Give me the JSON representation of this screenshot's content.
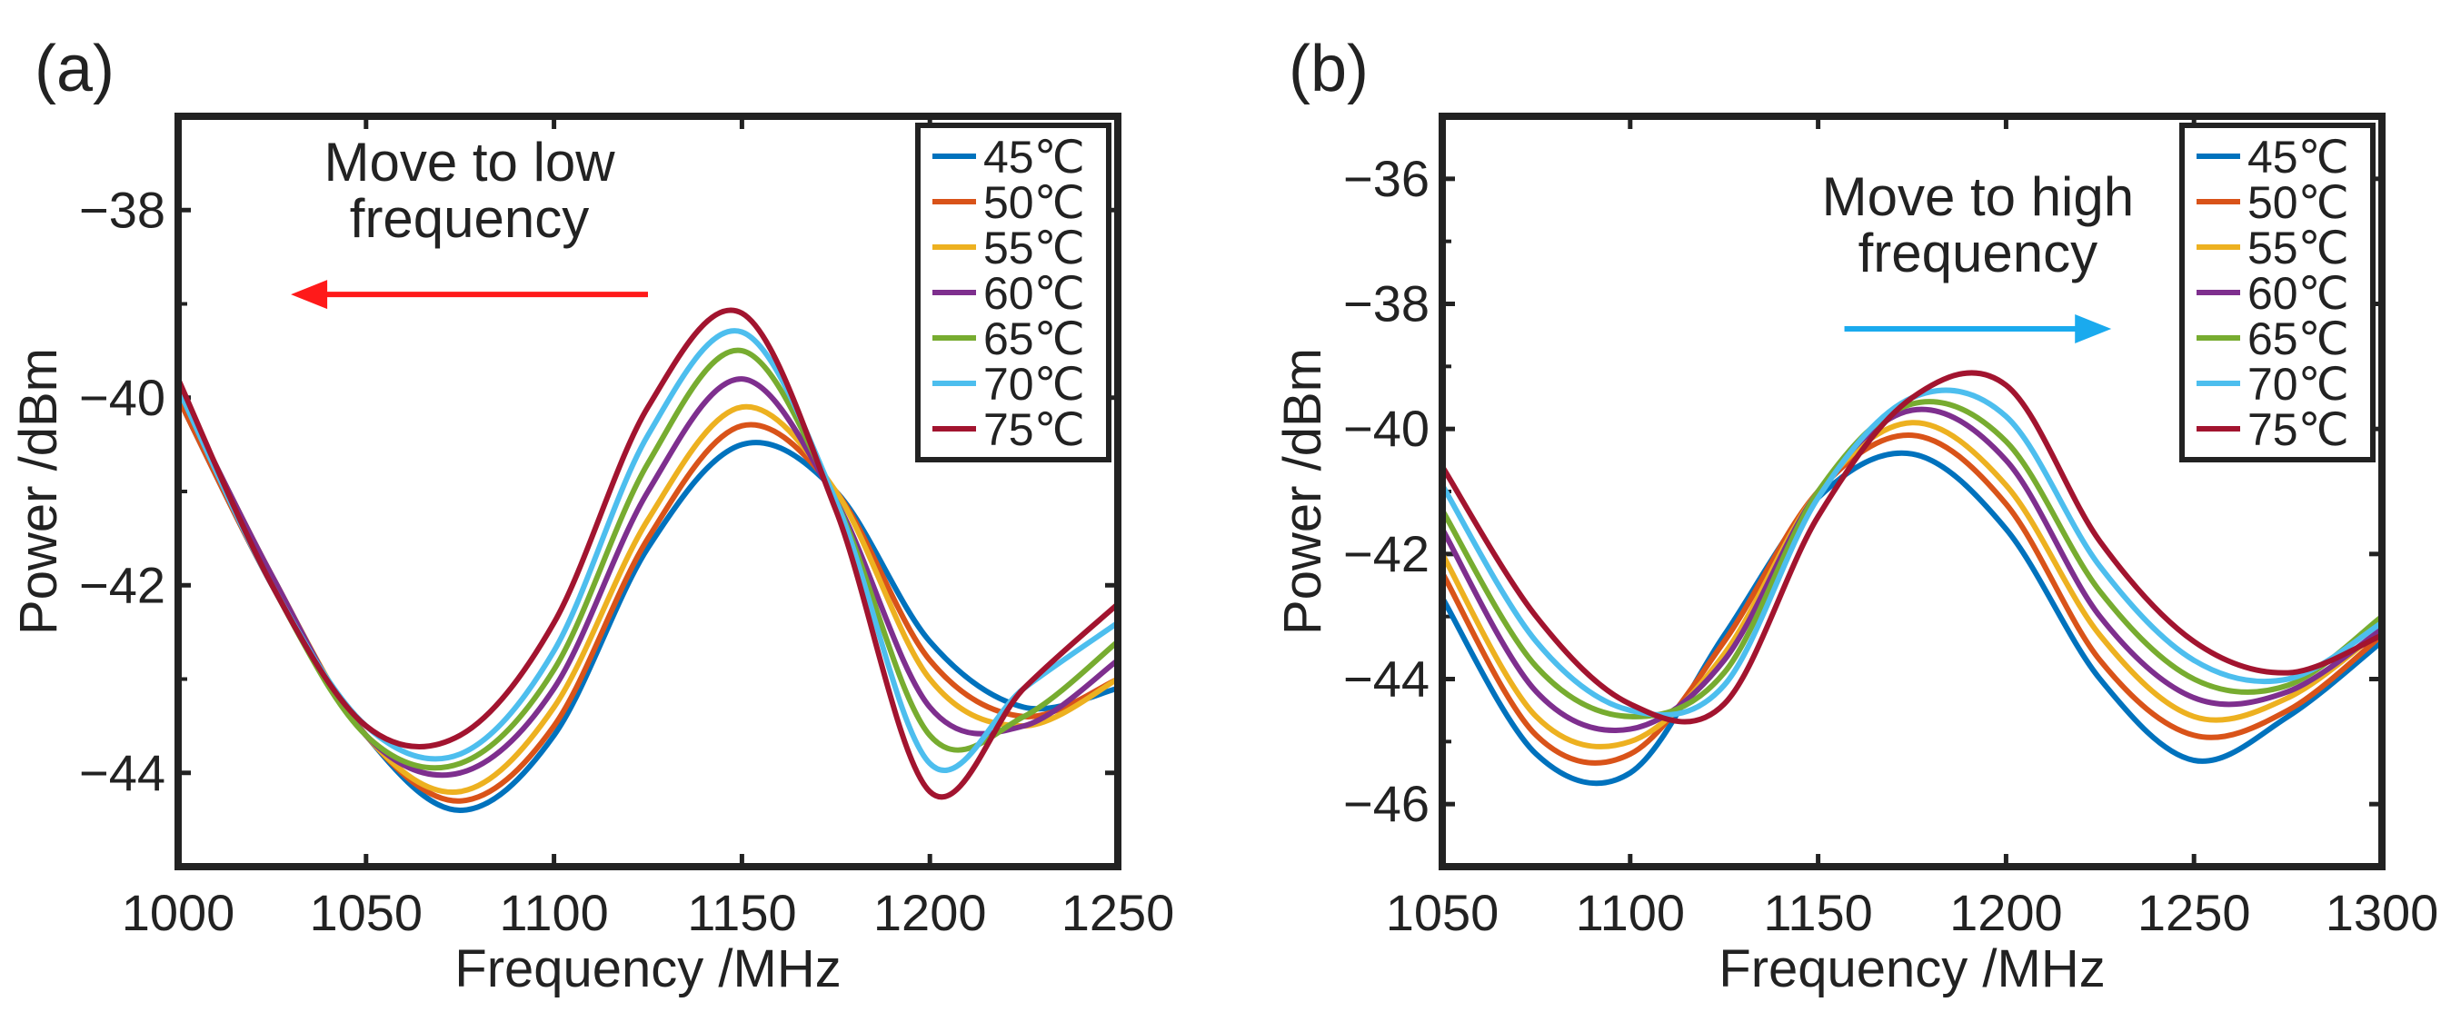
{
  "chart_data": [
    {
      "type": "line",
      "panel_label": "(a)",
      "xlabel": "Frequency /MHz",
      "ylabel": "Power /dBm",
      "xlim": [
        1000,
        1250
      ],
      "ylim": [
        -45,
        -37
      ],
      "xticks": [
        1000,
        1050,
        1100,
        1150,
        1200,
        1250
      ],
      "xtick_labels": [
        "1000",
        "1050",
        "1100",
        "1150",
        "1200",
        "1250"
      ],
      "yticks": [
        -44,
        -42,
        -40,
        -38
      ],
      "ytick_labels": [
        "−44",
        "−42",
        "−40",
        "−38"
      ],
      "legend": "top-right",
      "annotation": {
        "lines": [
          "Move to low",
          "frequency"
        ],
        "arrow": "left",
        "arrow_color": "#ff1a1a",
        "arrow_from": 1125,
        "arrow_to": 1030,
        "arrow_y": -38.9
      },
      "x": [
        1000,
        1025,
        1050,
        1075,
        1100,
        1125,
        1150,
        1175,
        1200,
        1225,
        1250
      ],
      "series": [
        {
          "name": "45℃",
          "color": "#0072bd",
          "values": [
            -40.0,
            -42.0,
            -43.6,
            -44.4,
            -43.6,
            -41.6,
            -40.5,
            -41.0,
            -42.6,
            -43.3,
            -43.1
          ]
        },
        {
          "name": "50℃",
          "color": "#d95319",
          "values": [
            -40.0,
            -42.0,
            -43.6,
            -44.3,
            -43.5,
            -41.5,
            -40.3,
            -41.0,
            -42.8,
            -43.4,
            -43.0
          ]
        },
        {
          "name": "55℃",
          "color": "#edb120",
          "values": [
            -39.9,
            -41.9,
            -43.6,
            -44.2,
            -43.3,
            -41.3,
            -40.1,
            -41.0,
            -43.0,
            -43.5,
            -43.0
          ]
        },
        {
          "name": "60℃",
          "color": "#7e2f8e",
          "values": [
            -39.9,
            -41.9,
            -43.6,
            -44.0,
            -43.1,
            -41.0,
            -39.8,
            -41.1,
            -43.3,
            -43.5,
            -42.8
          ]
        },
        {
          "name": "65℃",
          "color": "#77ac30",
          "values": [
            -39.9,
            -42.0,
            -43.6,
            -43.9,
            -42.9,
            -40.7,
            -39.5,
            -41.1,
            -43.6,
            -43.4,
            -42.6
          ]
        },
        {
          "name": "70℃",
          "color": "#4dbeee",
          "values": [
            -39.9,
            -42.0,
            -43.5,
            -43.8,
            -42.7,
            -40.4,
            -39.3,
            -41.1,
            -43.9,
            -43.1,
            -42.4
          ]
        },
        {
          "name": "75℃",
          "color": "#a2142f",
          "values": [
            -39.8,
            -42.0,
            -43.5,
            -43.6,
            -42.4,
            -40.1,
            -39.1,
            -41.2,
            -44.2,
            -43.1,
            -42.2
          ]
        }
      ]
    },
    {
      "type": "line",
      "panel_label": "(b)",
      "xlabel": "Frequency /MHz",
      "ylabel": "Power /dBm",
      "xlim": [
        1050,
        1300
      ],
      "ylim": [
        -47,
        -35
      ],
      "xticks": [
        1050,
        1100,
        1150,
        1200,
        1250,
        1300
      ],
      "xtick_labels": [
        "1050",
        "1100",
        "1150",
        "1200",
        "1250",
        "1300"
      ],
      "yticks": [
        -46,
        -44,
        -42,
        -40,
        -38,
        -36
      ],
      "ytick_labels": [
        "−46",
        "−44",
        "−42",
        "−40",
        "−38",
        "−36"
      ],
      "legend": "top-right",
      "annotation": {
        "lines": [
          "Move to high",
          "frequency"
        ],
        "arrow": "right",
        "arrow_color": "#1aaaee",
        "arrow_from": 1157,
        "arrow_to": 1228,
        "arrow_y": -38.4
      },
      "x": [
        1050,
        1075,
        1100,
        1125,
        1150,
        1175,
        1200,
        1225,
        1250,
        1275,
        1300
      ],
      "series": [
        {
          "name": "45℃",
          "color": "#0072bd",
          "values": [
            -42.7,
            -45.2,
            -45.5,
            -43.3,
            -41.1,
            -40.4,
            -41.6,
            -44.0,
            -45.3,
            -44.6,
            -43.4
          ]
        },
        {
          "name": "50℃",
          "color": "#d95319",
          "values": [
            -42.3,
            -44.9,
            -45.2,
            -43.4,
            -41.0,
            -40.1,
            -41.2,
            -43.7,
            -44.9,
            -44.5,
            -43.3
          ]
        },
        {
          "name": "55℃",
          "color": "#edb120",
          "values": [
            -42.0,
            -44.6,
            -45.0,
            -43.6,
            -41.0,
            -39.9,
            -40.9,
            -43.3,
            -44.6,
            -44.3,
            -43.2
          ]
        },
        {
          "name": "60℃",
          "color": "#7e2f8e",
          "values": [
            -41.6,
            -44.2,
            -44.8,
            -43.7,
            -41.0,
            -39.7,
            -40.5,
            -43.0,
            -44.3,
            -44.2,
            -43.2
          ]
        },
        {
          "name": "65℃",
          "color": "#77ac30",
          "values": [
            -41.3,
            -43.8,
            -44.6,
            -43.9,
            -41.0,
            -39.6,
            -40.2,
            -42.6,
            -44.0,
            -44.1,
            -43.0
          ]
        },
        {
          "name": "70℃",
          "color": "#4dbeee",
          "values": [
            -40.9,
            -43.4,
            -44.5,
            -44.1,
            -41.1,
            -39.5,
            -39.8,
            -42.2,
            -43.7,
            -44.0,
            -43.1
          ]
        },
        {
          "name": "75℃",
          "color": "#a2142f",
          "values": [
            -40.6,
            -43.0,
            -44.4,
            -44.4,
            -41.4,
            -39.5,
            -39.3,
            -41.8,
            -43.4,
            -43.9,
            -43.3
          ]
        }
      ]
    }
  ]
}
